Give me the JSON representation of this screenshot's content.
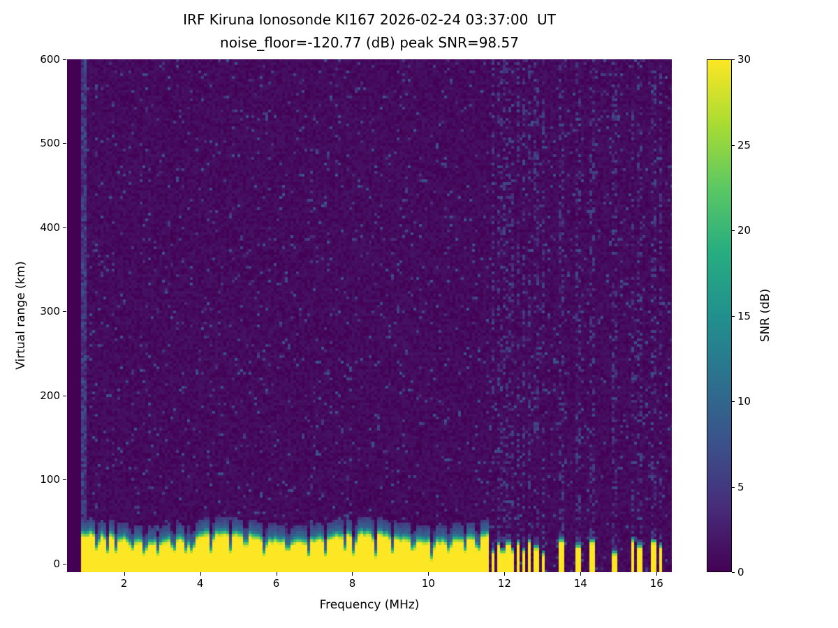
{
  "chart_data": {
    "type": "heatmap",
    "title": "IRF Kiruna Ionosonde KI167 2026-02-24 03:37:00  UT",
    "subtitle": "noise_floor=-120.77 (dB) peak SNR=98.57",
    "station": "IRF Kiruna Ionosonde KI167",
    "timestamp_ut": "2026-02-24 03:37:00",
    "noise_floor_db": -120.77,
    "peak_snr_db": 98.57,
    "xlabel": "Frequency (MHz)",
    "ylabel": "Virtual range (km)",
    "xlim": [
      0.5,
      16.4
    ],
    "ylim": [
      -10,
      600
    ],
    "xticks": [
      2,
      4,
      6,
      8,
      10,
      12,
      14,
      16
    ],
    "yticks": [
      0,
      100,
      200,
      300,
      400,
      500,
      600
    ],
    "colorbar": {
      "label": "SNR (dB)",
      "min": 0,
      "max": 30,
      "ticks": [
        0,
        5,
        10,
        15,
        20,
        25,
        30
      ]
    },
    "colormap": "viridis",
    "colormap_stops": [
      "#440154",
      "#472c7a",
      "#3b518b",
      "#2c718e",
      "#21908d",
      "#27ad81",
      "#5cc863",
      "#aadc32",
      "#fde725"
    ],
    "features": {
      "data_freq_start_mhz": 0.9,
      "echo_band": {
        "freq_start_mhz": 0.9,
        "freq_end_mhz": 11.62,
        "top_km": 38,
        "halo_km": 13,
        "peak_snr_db": 30
      },
      "band_notch_freqs_mhz": [
        1.3,
        1.55,
        1.8,
        2.2,
        2.55,
        2.9,
        3.3,
        3.65,
        3.8,
        4.3,
        4.8,
        5.2,
        5.7,
        6.3,
        6.85,
        7.3,
        7.8,
        8.05,
        8.6,
        9.05,
        9.6,
        10.1,
        10.55,
        10.95,
        11.3
      ],
      "broken_bar_freqs_mhz": [
        11.68,
        11.82,
        11.96,
        12.1,
        12.24,
        12.38,
        12.52,
        12.68,
        12.84,
        13.0,
        13.5,
        13.94,
        14.3,
        14.9,
        15.4,
        15.56,
        15.92,
        16.1
      ],
      "noise": {
        "speckle_probability": 0.045,
        "speckle_snr_max_db": 8,
        "background_snr_max_db": 1.7
      }
    }
  }
}
